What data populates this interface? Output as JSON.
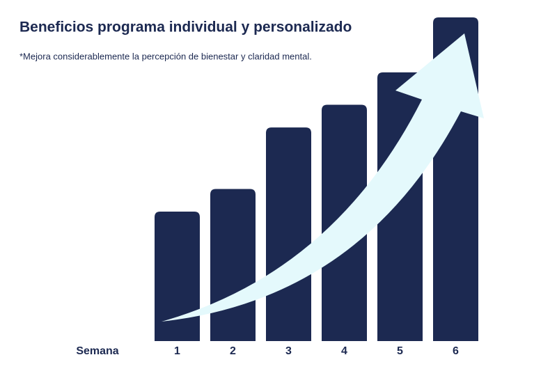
{
  "chart_data": {
    "type": "bar",
    "title": "Beneficios programa individual y personalizado",
    "subtitle": "*Mejora considerablemente la percepción de bienestar y claridad mental.",
    "x_label": "Semana",
    "categories": [
      "1",
      "2",
      "3",
      "4",
      "5",
      "6"
    ],
    "values": [
      40,
      47,
      66,
      73,
      83,
      100
    ],
    "color": "#1c2951",
    "ylim": [
      0,
      100
    ]
  }
}
